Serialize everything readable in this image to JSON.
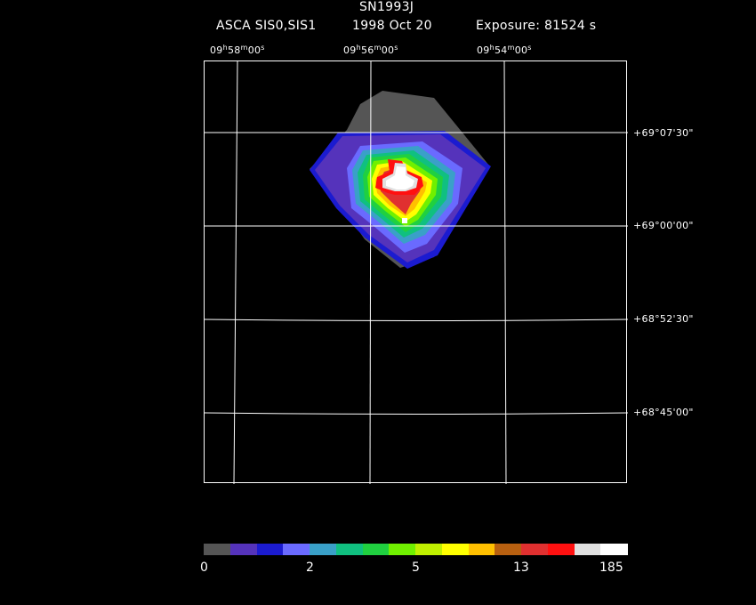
{
  "header": {
    "object": "SN1993J",
    "instrument": "ASCA SIS0,SIS1",
    "date": "1998 Oct 20",
    "exposure": "Exposure: 81524 s"
  },
  "ra_labels": [
    {
      "h": "09",
      "m": "58",
      "s": "00"
    },
    {
      "h": "09",
      "m": "56",
      "s": "00"
    },
    {
      "h": "09",
      "m": "54",
      "s": "00"
    }
  ],
  "dec_labels": [
    "+69°07'30\"",
    "+69°00'00\"",
    "+68°52'30\"",
    "+68°45'00\""
  ],
  "colorbar": {
    "colors": [
      "#555555",
      "#5533bb",
      "#1b1bd0",
      "#6a6aff",
      "#3aa0c8",
      "#10c080",
      "#20d040",
      "#70f000",
      "#c0f000",
      "#ffff00",
      "#ffc000",
      "#b86010",
      "#e03030",
      "#ff1010",
      "#e0e0e0",
      "#ffffff"
    ],
    "ticks": [
      "0",
      "2",
      "5",
      "13",
      "185"
    ]
  }
}
